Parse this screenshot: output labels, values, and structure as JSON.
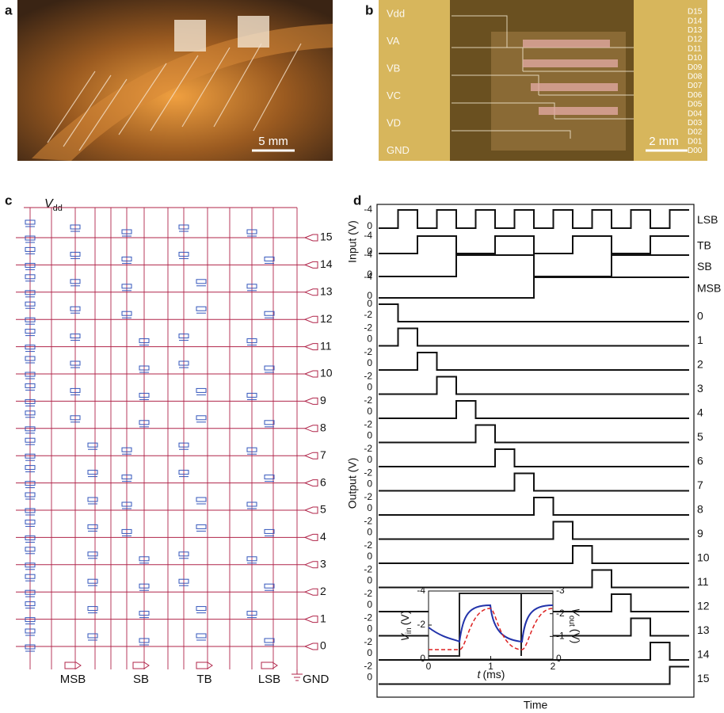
{
  "panel_a": {
    "label": "a",
    "scale_bar": "5 mm"
  },
  "panel_b": {
    "label": "b",
    "scale_bar": "2 mm",
    "left_pads": [
      "Vdd",
      "VA",
      "VB",
      "VC",
      "VD",
      "GND"
    ],
    "right_pads": [
      "D15",
      "D14",
      "D13",
      "D12",
      "D11",
      "D10",
      "D09",
      "D08",
      "D07",
      "D06",
      "D05",
      "D04",
      "D03",
      "D02",
      "D01",
      "D00"
    ]
  },
  "panel_c": {
    "label": "c",
    "supply": {
      "symbol": "V",
      "subscript": "dd"
    },
    "rows": [
      "15",
      "14",
      "13",
      "12",
      "11",
      "10",
      "9",
      "8",
      "7",
      "6",
      "5",
      "4",
      "3",
      "2",
      "1",
      "0"
    ],
    "inputs": [
      "MSB",
      "SB",
      "TB",
      "LSB"
    ],
    "ground": "GND"
  },
  "panel_d": {
    "label": "d",
    "input_axis_label": "Input (V)",
    "output_axis_label": "Output (V)",
    "x_axis_label": "Time",
    "inputs": [
      {
        "name": "LSB",
        "ticks": [
          -4,
          0
        ]
      },
      {
        "name": "TB",
        "ticks": [
          -4,
          0
        ]
      },
      {
        "name": "SB",
        "ticks": [
          -4,
          0
        ]
      },
      {
        "name": "MSB",
        "ticks": [
          -4,
          0
        ]
      }
    ],
    "outputs": [
      {
        "name": "0",
        "ticks": [
          0,
          -2
        ]
      },
      {
        "name": "1",
        "ticks": [
          -2,
          0
        ]
      },
      {
        "name": "2",
        "ticks": [
          -2,
          0
        ]
      },
      {
        "name": "3",
        "ticks": [
          -2,
          0
        ]
      },
      {
        "name": "4",
        "ticks": [
          -2,
          0
        ]
      },
      {
        "name": "5",
        "ticks": [
          -2,
          0
        ]
      },
      {
        "name": "6",
        "ticks": [
          -2,
          0
        ]
      },
      {
        "name": "7",
        "ticks": [
          -2,
          0
        ]
      },
      {
        "name": "8",
        "ticks": [
          -2,
          0
        ]
      },
      {
        "name": "9",
        "ticks": [
          -2,
          0
        ]
      },
      {
        "name": "10",
        "ticks": [
          -2,
          0
        ]
      },
      {
        "name": "11",
        "ticks": [
          -2,
          0
        ]
      },
      {
        "name": "12",
        "ticks": [
          -2,
          0
        ]
      },
      {
        "name": "13",
        "ticks": [
          -2,
          0
        ]
      },
      {
        "name": "14",
        "ticks": [
          -2,
          0
        ]
      },
      {
        "name": "15",
        "ticks": [
          -2,
          0
        ]
      }
    ],
    "inset": {
      "x_label": {
        "var": "t",
        "unit": "(ms)"
      },
      "xticks": [
        0,
        1,
        2
      ],
      "y_label": {
        "var": "V",
        "sub": "in",
        "unit": "(V)"
      },
      "yticks": [
        -4,
        -2,
        0
      ],
      "y2_label": {
        "var": "V",
        "sub": "out",
        "unit": "(V)"
      },
      "y2ticks": [
        -3,
        -2,
        -1,
        0
      ]
    }
  }
}
